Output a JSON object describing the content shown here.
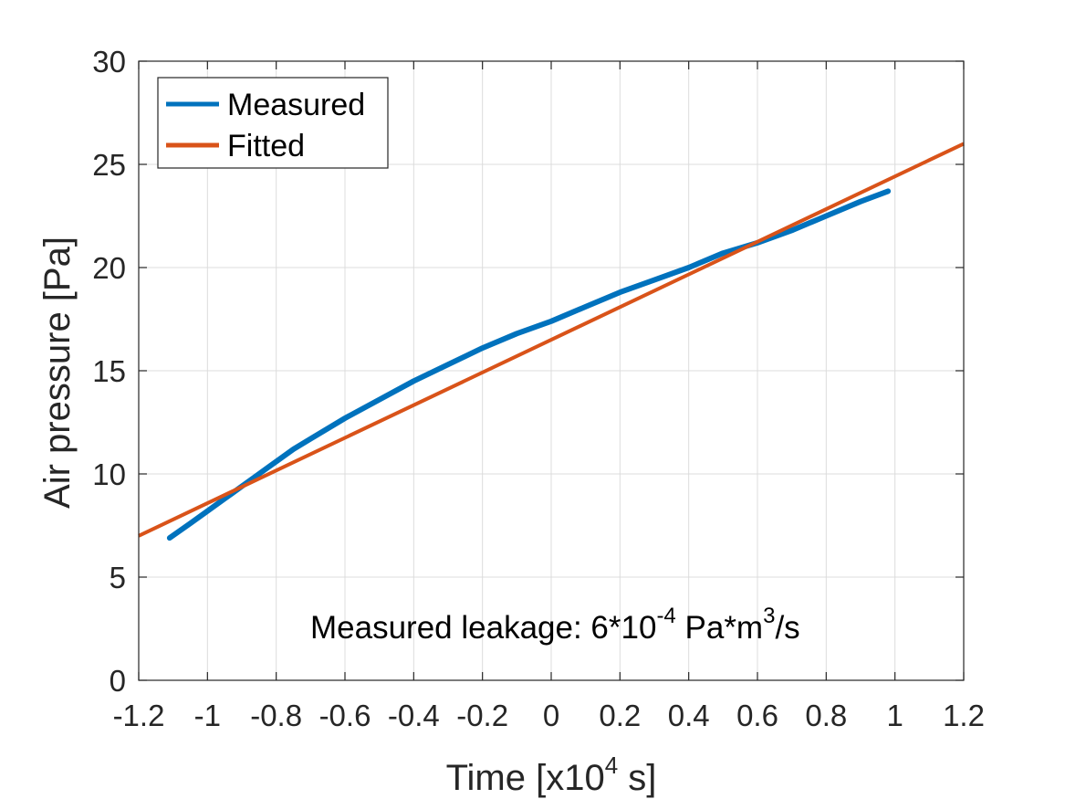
{
  "chart_data": {
    "type": "line",
    "title": "",
    "xlabel": "Time [x10",
    "xlabel_sup": "4",
    "xlabel_suffix": " s]",
    "ylabel": "Air pressure [Pa]",
    "xlim": [
      -1.2,
      1.2
    ],
    "ylim": [
      0,
      30
    ],
    "grid": true,
    "legend_position": "top-left",
    "x_ticks": [
      -1.2,
      -1,
      -0.8,
      -0.6,
      -0.4,
      -0.2,
      0,
      0.2,
      0.4,
      0.6,
      0.8,
      1,
      1.2
    ],
    "x_tick_labels": [
      "-1.2",
      "-1",
      "-0.8",
      "-0.6",
      "-0.4",
      "-0.2",
      "0",
      "0.2",
      "0.4",
      "0.6",
      "0.8",
      "1",
      "1.2"
    ],
    "y_ticks": [
      0,
      5,
      10,
      15,
      20,
      25,
      30
    ],
    "y_tick_labels": [
      "0",
      "5",
      "10",
      "15",
      "20",
      "25",
      "30"
    ],
    "series": [
      {
        "name": "Measured",
        "color": "#0072BD",
        "x": [
          -1.11,
          -1.05,
          -1.0,
          -0.95,
          -0.9,
          -0.85,
          -0.8,
          -0.75,
          -0.7,
          -0.6,
          -0.5,
          -0.4,
          -0.3,
          -0.2,
          -0.1,
          0.0,
          0.1,
          0.2,
          0.3,
          0.4,
          0.5,
          0.6,
          0.7,
          0.8,
          0.9,
          0.98
        ],
        "y": [
          6.9,
          7.6,
          8.2,
          8.8,
          9.4,
          10.0,
          10.6,
          11.2,
          11.7,
          12.7,
          13.6,
          14.5,
          15.3,
          16.1,
          16.8,
          17.4,
          18.1,
          18.8,
          19.4,
          20.0,
          20.7,
          21.2,
          21.8,
          22.5,
          23.2,
          23.7
        ]
      },
      {
        "name": "Fitted",
        "color": "#D95319",
        "x": [
          -1.2,
          1.2
        ],
        "y": [
          7.0,
          26.0
        ]
      }
    ],
    "annotation": {
      "text": "Measured leakage: 6*10",
      "sup1": "-4",
      "mid": " Pa*m",
      "sup2": "3",
      "end": "/s"
    }
  }
}
